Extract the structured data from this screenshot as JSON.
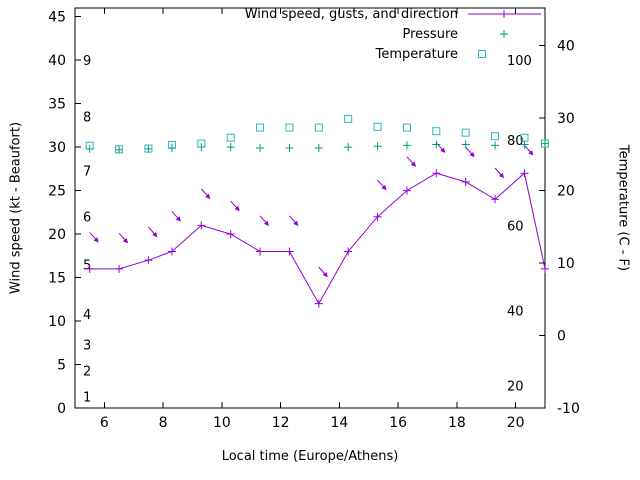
{
  "chart_data": {
    "type": "line",
    "title": "",
    "xlabel": "Local time (Europe/Athens)",
    "ylabel_left": "Wind speed (kt - Beaufort)",
    "ylabel_right": "Temperature (C - F)",
    "xlim": [
      5,
      21
    ],
    "ylim_left": [
      0,
      46
    ],
    "ylim_right": [
      -10,
      45.2
    ],
    "xticks": [
      6,
      8,
      10,
      12,
      14,
      16,
      18,
      20
    ],
    "yticks_left": [
      0,
      5,
      10,
      15,
      20,
      25,
      30,
      35,
      40,
      45
    ],
    "yticks_right": [
      -10,
      0,
      10,
      20,
      30,
      40
    ],
    "grid": false,
    "legend_position": "top-right-inside",
    "beaufort_scale_labels": [
      {
        "label": "1",
        "kt": 1.3
      },
      {
        "label": "2",
        "kt": 4.3
      },
      {
        "label": "3",
        "kt": 7.3
      },
      {
        "label": "4",
        "kt": 10.8
      },
      {
        "label": "5",
        "kt": 16.5
      },
      {
        "label": "6",
        "kt": 22.0
      },
      {
        "label": "7",
        "kt": 27.3
      },
      {
        "label": "8",
        "kt": 33.5
      },
      {
        "label": "9",
        "kt": 40.0
      }
    ],
    "inner_right_labels": [
      {
        "label": "20",
        "kt": 2.6
      },
      {
        "label": "40",
        "kt": 11.2
      },
      {
        "label": "60",
        "kt": 21.0
      },
      {
        "label": "80",
        "kt": 30.8
      },
      {
        "label": "100",
        "kt": 40.0
      }
    ],
    "x": [
      5.5,
      6.5,
      7.5,
      8.3,
      9.3,
      10.3,
      11.3,
      12.3,
      13.3,
      14.3,
      15.3,
      16.3,
      17.3,
      18.3,
      19.3,
      20.3,
      21
    ],
    "series": [
      {
        "name": "Wind speed, gusts, and direction",
        "color": "#9400d3",
        "axis": "left",
        "style": "linespoints",
        "marker": "plus",
        "values": [
          16,
          16,
          17,
          18,
          21,
          20,
          18,
          18,
          12,
          18,
          22,
          25,
          27,
          26,
          24,
          27,
          16
        ],
        "gust_arrows": {
          "x": [
            5.5,
            6.5,
            7.5,
            8.3,
            9.3,
            10.3,
            11.3,
            12.3,
            13.3,
            15.3,
            16.3,
            17.3,
            18.3,
            19.3,
            20.3
          ],
          "values": [
            20.2,
            20.1,
            20.8,
            22.6,
            25.2,
            23.8,
            22.1,
            22.1,
            16.2,
            26.2,
            28.9,
            30.5,
            30.0,
            27.6,
            30.2
          ]
        }
      },
      {
        "name": "Pressure",
        "color": "#009e73",
        "axis": "left",
        "style": "points",
        "marker": "plus",
        "values": [
          29.8,
          29.7,
          29.8,
          29.9,
          30.0,
          30.0,
          29.9,
          29.9,
          29.9,
          30.0,
          30.1,
          30.2,
          30.3,
          30.3,
          30.2,
          30.3,
          30.4
        ]
      },
      {
        "name": "Temperature",
        "color": "#2fb6bc",
        "axis": "right",
        "style": "points",
        "marker": "square",
        "values": [
          26.2,
          25.7,
          25.8,
          26.3,
          26.5,
          27.3,
          28.7,
          28.7,
          28.7,
          29.9,
          28.8,
          28.7,
          28.2,
          28.0,
          27.5,
          27.3,
          26.5
        ]
      }
    ]
  }
}
